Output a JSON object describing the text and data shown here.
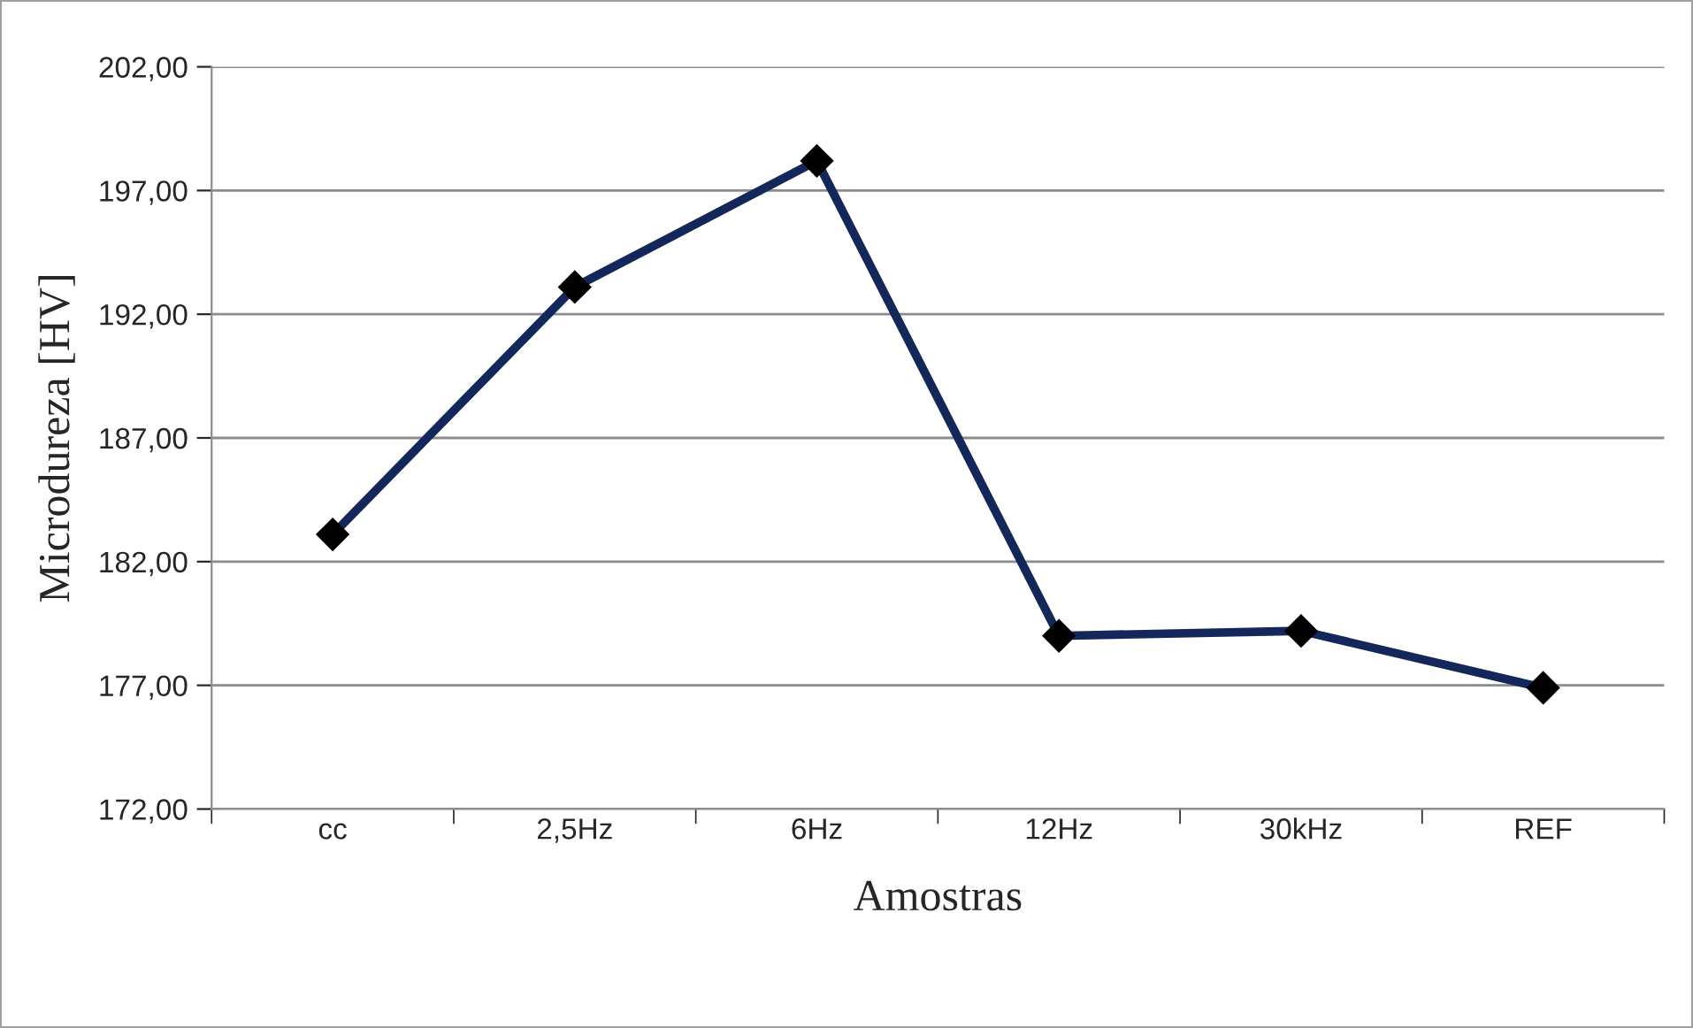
{
  "chart_data": {
    "type": "line",
    "xlabel": "Amostras",
    "ylabel": "Microdureza [HV]",
    "categories": [
      "cc",
      "2,5Hz",
      "6Hz",
      "12Hz",
      "30kHz",
      "REF"
    ],
    "series": [
      {
        "color": "#14275a",
        "values": [
          183.1,
          193.1,
          198.2,
          179.0,
          179.2,
          176.9
        ]
      }
    ],
    "ylim": [
      172,
      202
    ],
    "yticks": [
      {
        "value": 172,
        "label": "172,00"
      },
      {
        "value": 177,
        "label": "177,00"
      },
      {
        "value": 182,
        "label": "182,00"
      },
      {
        "value": 187,
        "label": "187,00"
      },
      {
        "value": 192,
        "label": "192,00"
      },
      {
        "value": 197,
        "label": "197,00"
      },
      {
        "value": 202,
        "label": "202,00"
      }
    ],
    "grid": "y",
    "marker": "diamond",
    "line_style": "solid",
    "legend": false
  }
}
